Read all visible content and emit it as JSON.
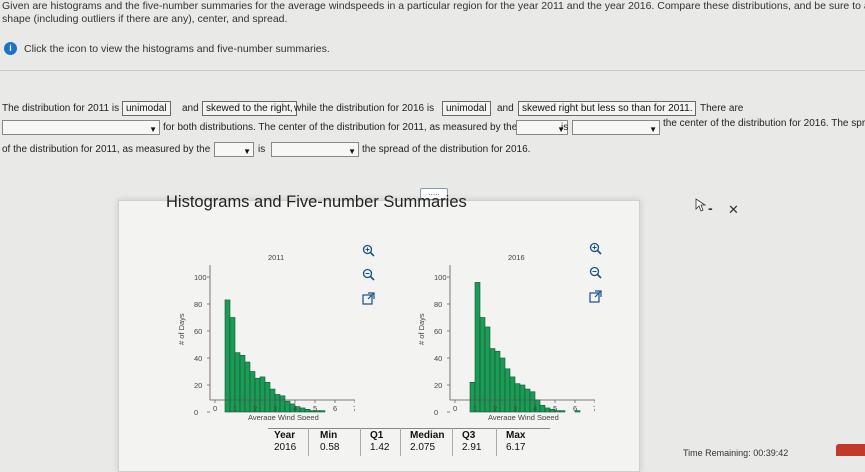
{
  "question": {
    "line1": "Given are histograms and the five-number summaries for the average windspeeds in a particular region for the year 2011 and the year 2016. Compare these distributions, and be sure to address",
    "line2": "shape (including outliers if there are any), center, and spread.",
    "info_text": "Click the icon to view the histograms and five-number summaries."
  },
  "answer": {
    "t1": "The distribution for 2011 is",
    "sel1": "unimodal",
    "t2": "and",
    "sel2": "skewed to the right,",
    "t3": "while the distribution for 2016 is",
    "sel3": "unimodal",
    "t4": "and",
    "sel4": "skewed right but less so than for 2011.",
    "t5": "There are",
    "t6": "for both distributions. The center of the distribution for 2011, as measured by the",
    "t7": "is",
    "t8": "the center of the distribution for 2016. The spr",
    "t9": "of the distribution for 2011, as measured by the",
    "t10": "is",
    "t11": "the spread of the distribution for 2016.",
    "expand_label": "....."
  },
  "popup": {
    "title": "Histograms and Five-number Summaries",
    "minimize": "-",
    "close": "✕"
  },
  "hist_2011": {
    "title": "2011",
    "ylabel": "# of Days",
    "xlabel": "Average Wind Speed",
    "yticks": [
      "100",
      "80",
      "60",
      "40",
      "20",
      "0"
    ],
    "xticks": [
      "0",
      "1",
      "2",
      "3",
      "4",
      "5",
      "6",
      "7"
    ],
    "values": [
      0,
      0,
      83,
      70,
      44,
      42,
      37,
      30,
      25,
      26,
      22,
      17,
      13,
      12,
      8,
      6,
      4,
      3,
      2,
      1,
      1,
      1,
      0,
      0,
      0,
      0,
      0,
      0
    ]
  },
  "hist_2016": {
    "title": "2016",
    "ylabel": "# of Days",
    "xlabel": "Average Wind Speed",
    "yticks": [
      "100",
      "80",
      "60",
      "40",
      "20",
      "0"
    ],
    "xticks": [
      "0",
      "1",
      "2",
      "3",
      "4",
      "5",
      "6",
      "7"
    ],
    "values": [
      0,
      0,
      0,
      22,
      96,
      70,
      63,
      47,
      45,
      40,
      32,
      26,
      21,
      20,
      17,
      15,
      9,
      5,
      3,
      2,
      1,
      1,
      0,
      0,
      1,
      0,
      0,
      0
    ]
  },
  "summary": {
    "headers": [
      "Year",
      "Min",
      "Q1",
      "Median",
      "Q3",
      "Max"
    ],
    "row": [
      "2016",
      "0.58",
      "1.42",
      "2.075",
      "2.91",
      "6.17"
    ]
  },
  "footer": {
    "timer": "Time Remaining: 00:39:42"
  },
  "colors": {
    "bar": "#1e9a57",
    "info": "#1a73c8"
  },
  "icons": [
    "zoom-in-icon",
    "zoom-out-icon",
    "popout-icon",
    "info-icon",
    "dropdown-arrow-icon",
    "minimize-icon",
    "close-icon",
    "cursor-icon"
  ]
}
